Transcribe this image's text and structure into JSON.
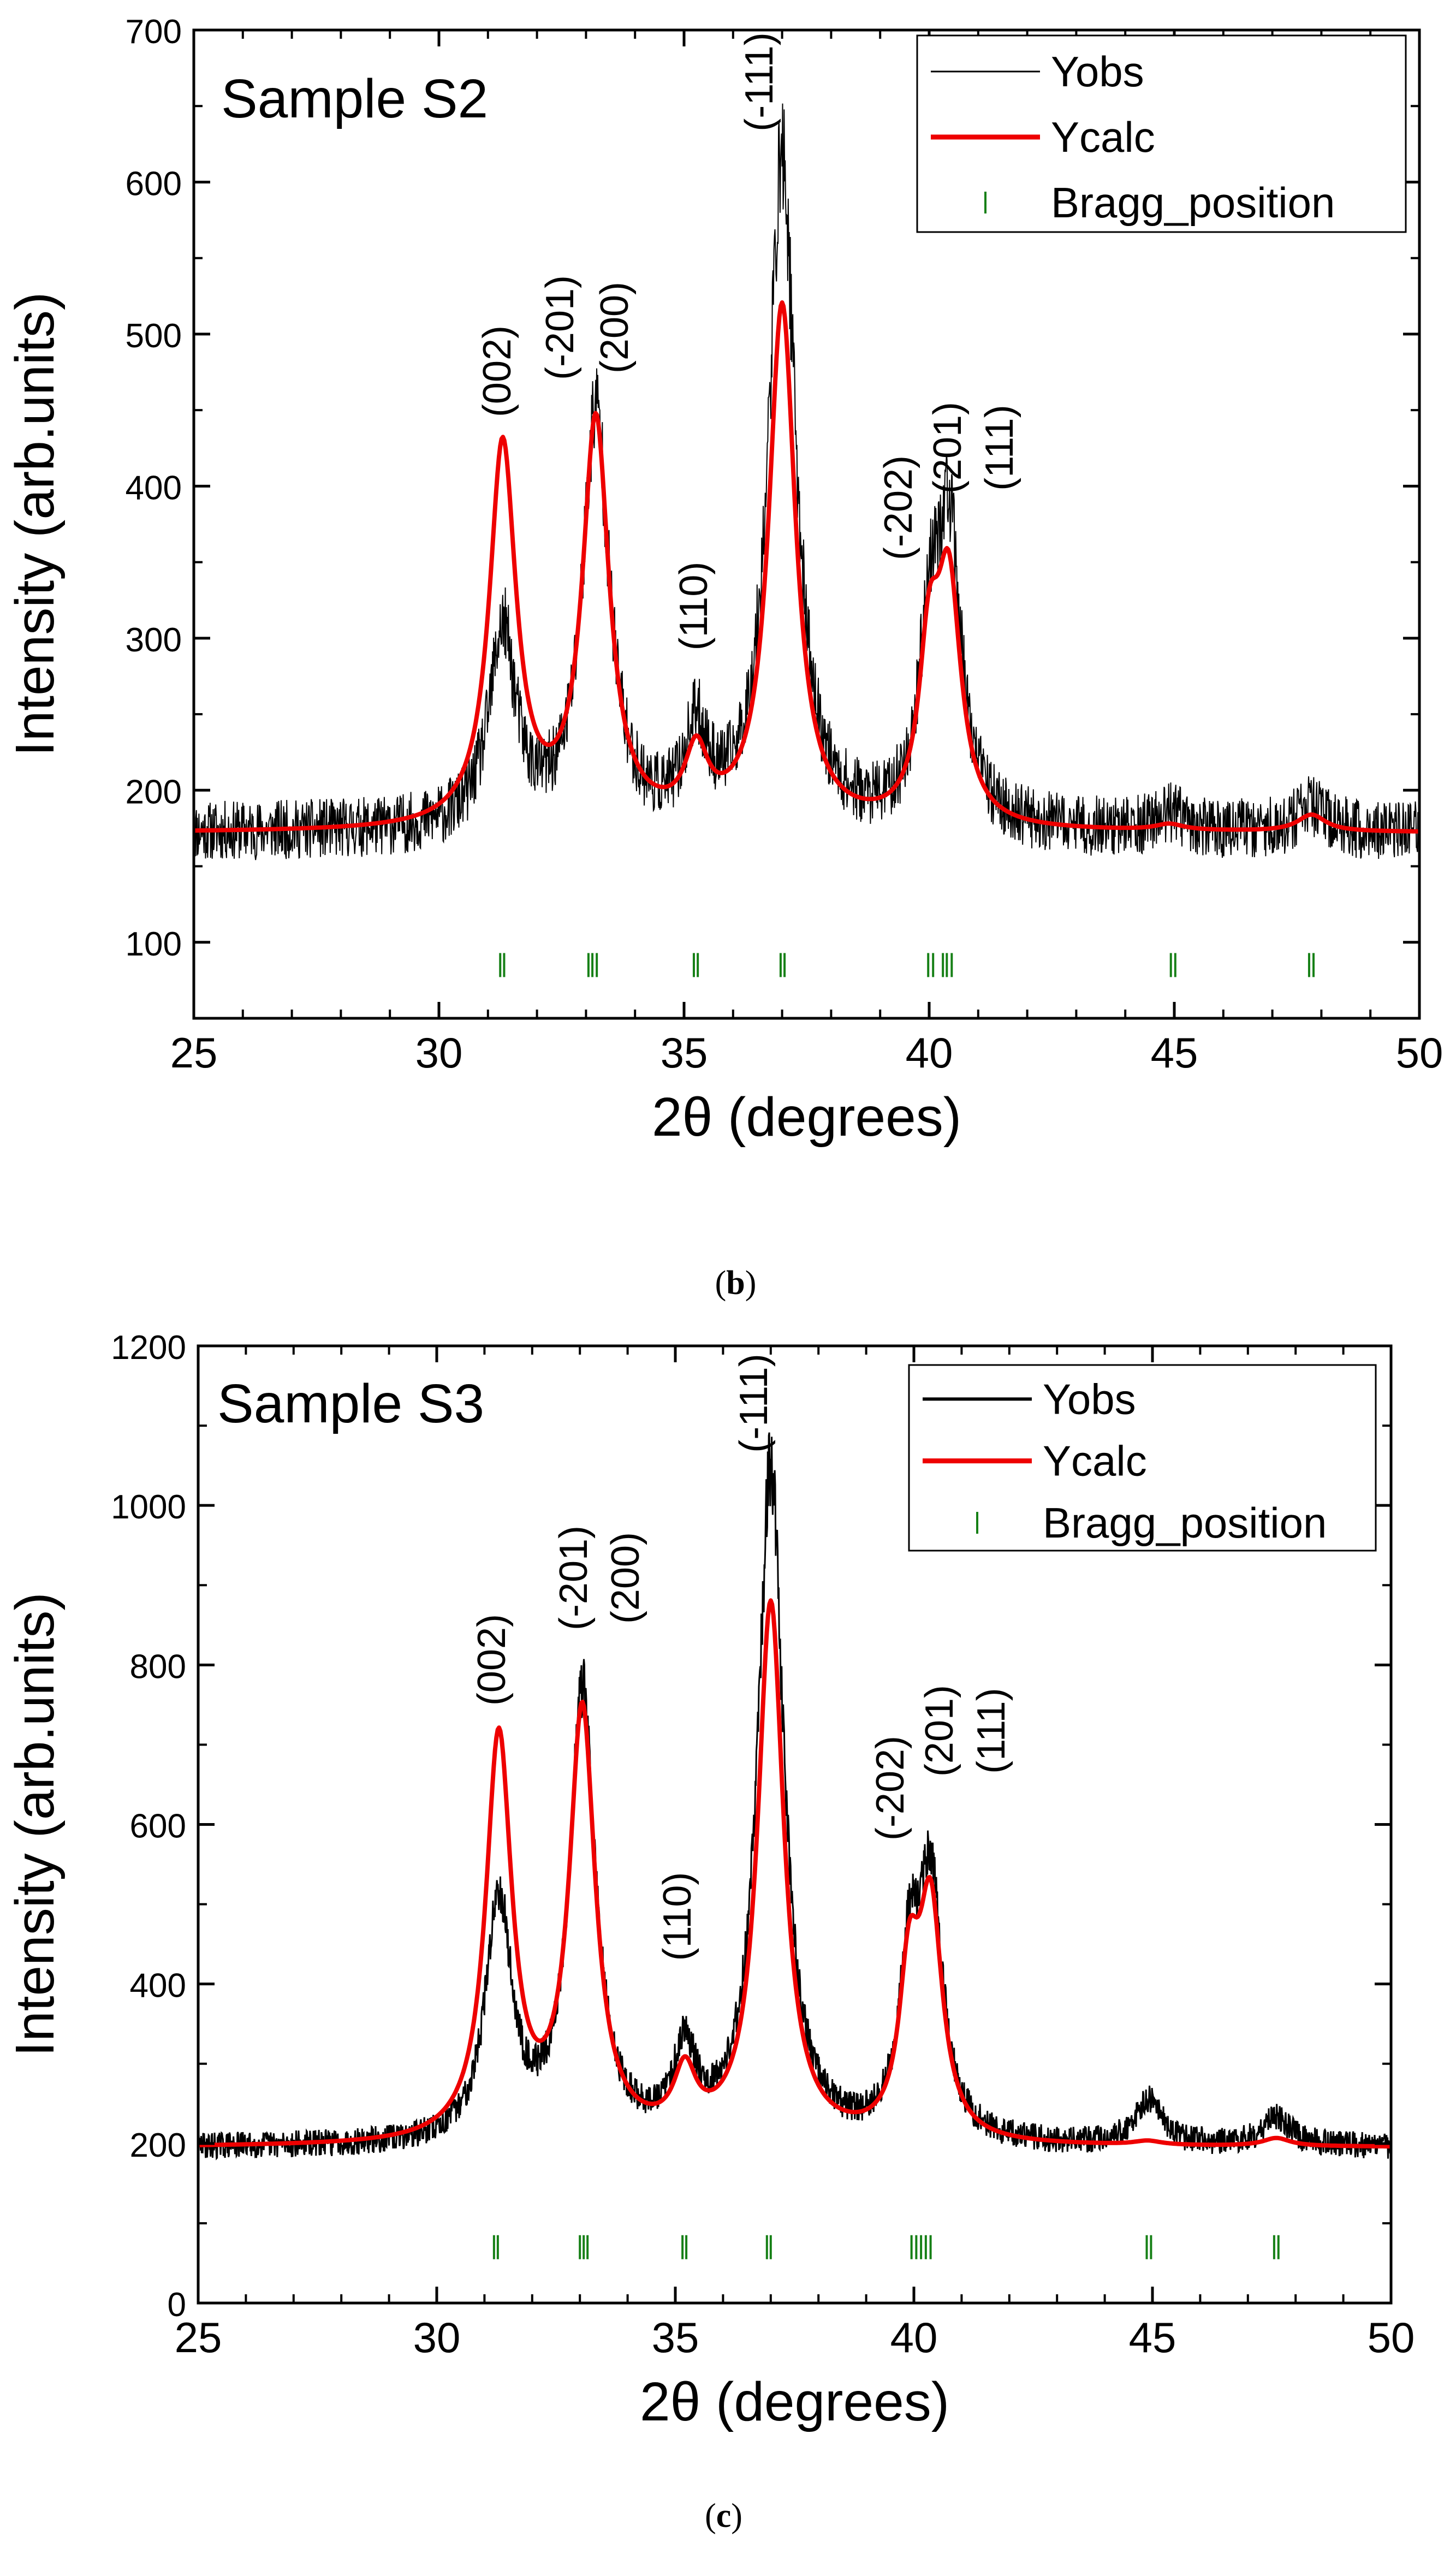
{
  "chart_data": [
    {
      "type": "line",
      "panel_label": "b",
      "sample_label": "Sample S2",
      "xlabel": "2θ (degrees)",
      "ylabel": "Intensity (arb.units)",
      "xlim": [
        25,
        50
      ],
      "ylim": [
        50,
        700
      ],
      "x_ticks": [
        25,
        30,
        35,
        40,
        45,
        50
      ],
      "y_ticks": [
        100,
        200,
        300,
        400,
        500,
        600,
        700
      ],
      "grid": false,
      "legend_position": "top-right",
      "legend": [
        "Yobs",
        "Ycalc",
        "Bragg_position"
      ],
      "background": 172,
      "noise_amplitude": 14,
      "peaks": [
        {
          "hkl": "(002)",
          "position": 31.3,
          "ycalc_height": 423,
          "yobs_height": 300
        },
        {
          "hkl": "(-201)",
          "position": 33.2,
          "ycalc_height": 437,
          "yobs_height": 445
        },
        {
          "hkl": "(200)",
          "position": 33.25
        },
        {
          "hkl": "(110)",
          "position": 35.25,
          "ycalc_height": 215,
          "yobs_height": 228
        },
        {
          "hkl": "(-111)",
          "position": 37.0,
          "ycalc_height": 515,
          "yobs_height": 612
        },
        {
          "hkl": "(-202)",
          "position": 40.0,
          "ycalc_height": 272,
          "yobs_height": 275
        },
        {
          "hkl": "(201)",
          "position": 40.4,
          "ycalc_height": 325,
          "yobs_height": 360
        },
        {
          "hkl": "(111)",
          "position": 40.5
        }
      ],
      "minor_peaks": [
        {
          "position": 44.9,
          "ycalc_height": 176,
          "yobs_height": 183
        },
        {
          "position": 47.8,
          "ycalc_height": 183,
          "yobs_height": 188
        }
      ],
      "bragg_positions": [
        31.25,
        31.33,
        33.05,
        33.13,
        33.22,
        35.2,
        35.28,
        36.97,
        37.05,
        39.98,
        40.08,
        40.28,
        40.36,
        40.46,
        44.93,
        45.02,
        47.75,
        47.84
      ],
      "bragg_level": 85,
      "series": [
        {
          "name": "Yobs",
          "color": "#000000"
        },
        {
          "name": "Ycalc",
          "color": "#ee0000"
        },
        {
          "name": "Bragg_position",
          "color": "#168016"
        }
      ]
    },
    {
      "type": "line",
      "panel_label": "c",
      "sample_label": "Sample S3",
      "xlabel": "2θ (degrees)",
      "ylabel": "Intensity (arb.units)",
      "xlim": [
        25,
        50
      ],
      "ylim": [
        0,
        1200
      ],
      "x_ticks": [
        25,
        30,
        35,
        40,
        45,
        50
      ],
      "y_ticks": [
        0,
        200,
        400,
        600,
        800,
        1000,
        1200
      ],
      "grid": false,
      "legend_position": "top-right",
      "legend": [
        "Yobs",
        "Ycalc",
        "Bragg_position"
      ],
      "background": 195,
      "noise_amplitude": 12,
      "peaks": [
        {
          "hkl": "(002)",
          "position": 31.3,
          "ycalc_height": 700,
          "yobs_height": 500
        },
        {
          "hkl": "(-201)",
          "position": 33.05,
          "ycalc_height": 730,
          "yobs_height": 755
        },
        {
          "hkl": "(200)",
          "position": 33.12
        },
        {
          "hkl": "(110)",
          "position": 35.2,
          "ycalc_height": 270,
          "yobs_height": 300
        },
        {
          "hkl": "(-111)",
          "position": 37.0,
          "ycalc_height": 870,
          "yobs_height": 1038
        },
        {
          "hkl": "(-202)",
          "position": 39.9,
          "ycalc_height": 380,
          "yobs_height": 390
        },
        {
          "hkl": "(201)",
          "position": 40.35,
          "ycalc_height": 480,
          "yobs_height": 510
        },
        {
          "hkl": "(111)",
          "position": 40.45
        }
      ],
      "minor_peaks": [
        {
          "position": 44.9,
          "ycalc_height": 200,
          "yobs_height": 250
        },
        {
          "position": 47.6,
          "ycalc_height": 205,
          "yobs_height": 230
        }
      ],
      "bragg_positions": [
        31.2,
        31.28,
        33.0,
        33.08,
        33.16,
        35.15,
        35.23,
        36.92,
        37.0,
        39.95,
        40.05,
        40.15,
        40.25,
        40.35,
        44.88,
        44.97,
        47.55,
        47.64
      ],
      "bragg_level": 70,
      "series": [
        {
          "name": "Yobs",
          "color": "#000000"
        },
        {
          "name": "Ycalc",
          "color": "#ee0000"
        },
        {
          "name": "Bragg_position",
          "color": "#168016"
        }
      ]
    }
  ]
}
